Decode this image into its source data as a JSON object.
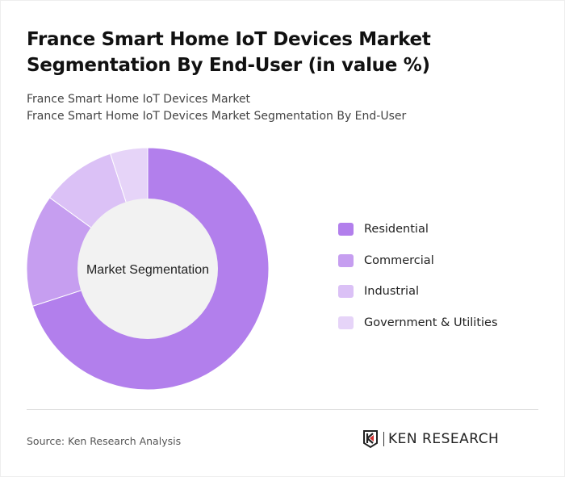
{
  "title": "France Smart Home IoT Devices Market Segmentation By End-User (in value %)",
  "subtitle1": "France Smart Home IoT Devices Market",
  "subtitle2": "France Smart Home IoT Devices Market Segmentation By End-User",
  "chart_data": {
    "type": "pie",
    "donut": true,
    "center_label": "Market Segmentation",
    "categories": [
      "Residential",
      "Commercial",
      "Industrial",
      "Government & Utilities"
    ],
    "values": [
      70,
      15,
      10,
      5
    ],
    "colors": [
      "#b27fec",
      "#c69ef0",
      "#dbc1f6",
      "#e6d4f8"
    ],
    "legend_position": "right"
  },
  "source": "Source: Ken Research Analysis",
  "logo_text": "KEN RESEARCH"
}
